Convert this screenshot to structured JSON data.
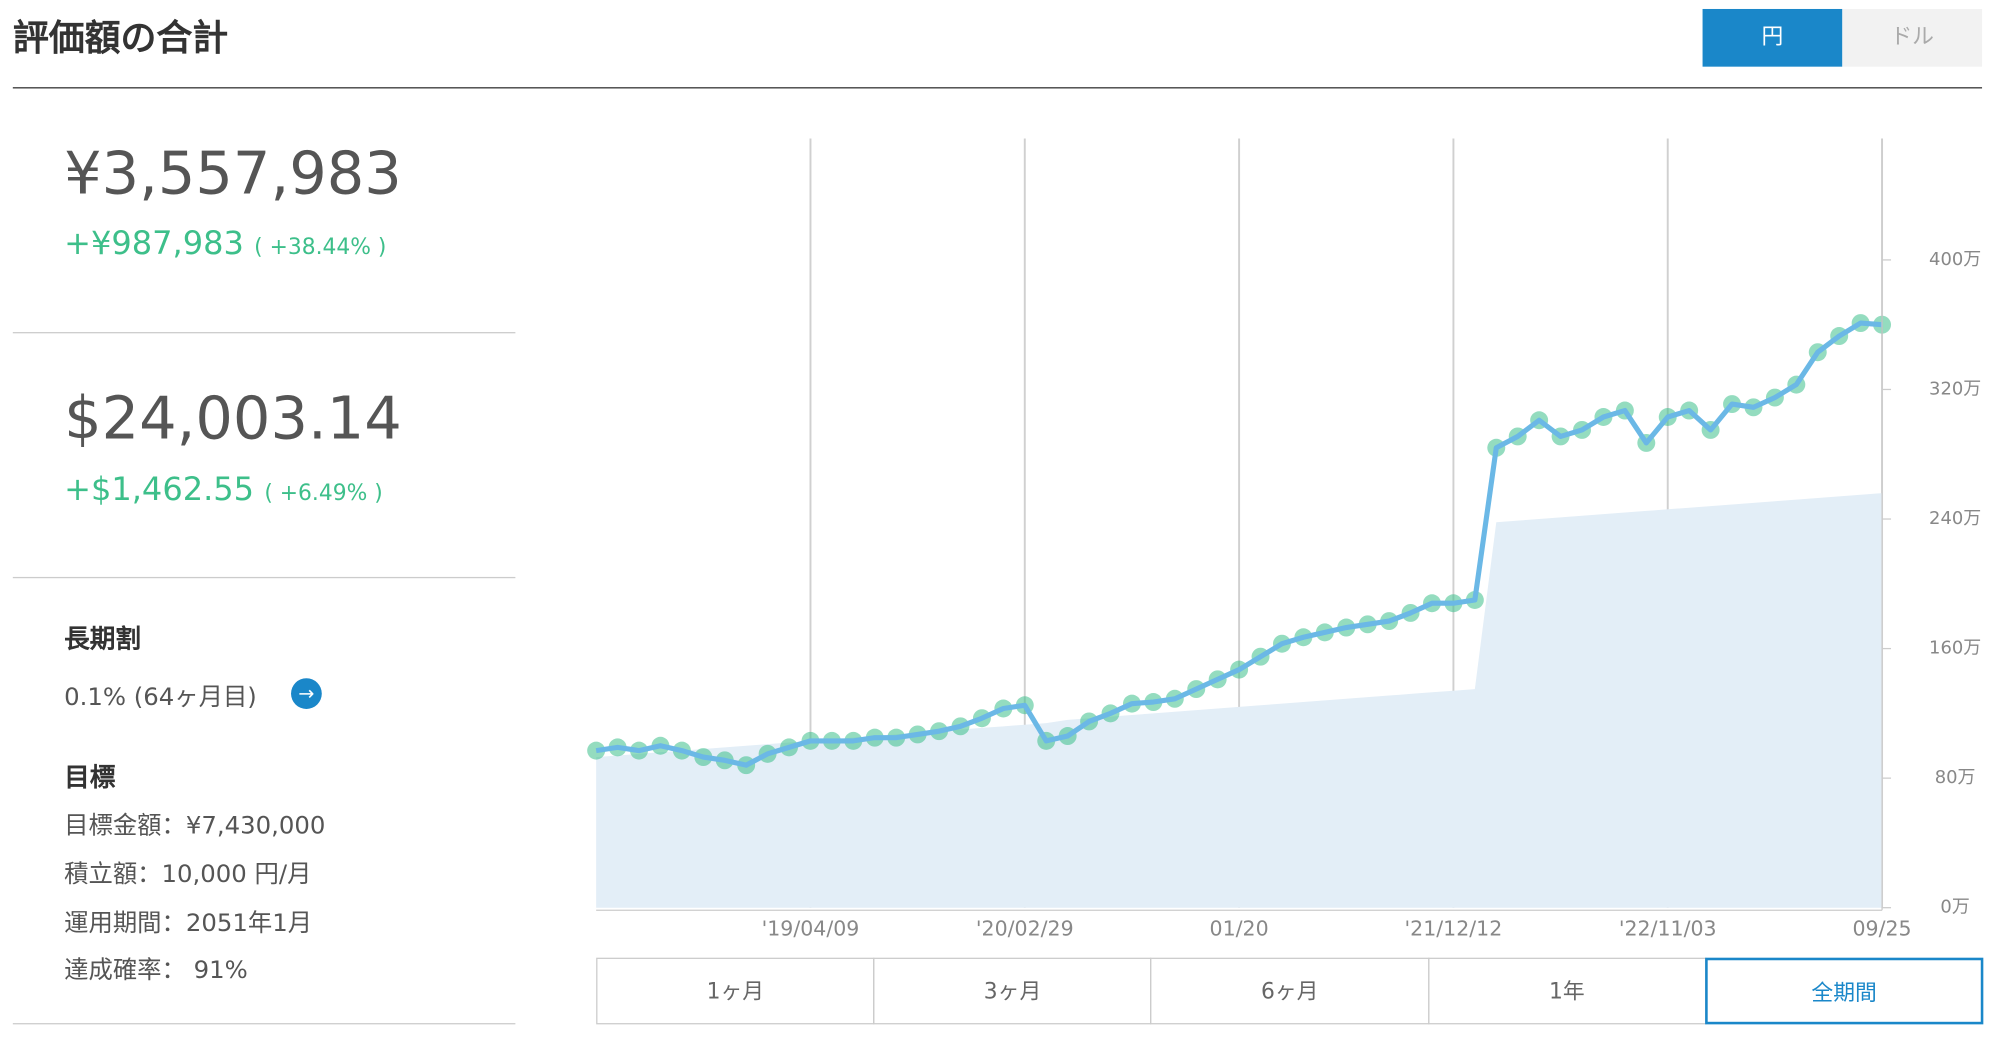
{
  "header": {
    "title": "評価額の合計",
    "toggle": [
      "円",
      "ドル"
    ]
  },
  "summary": {
    "jpy": {
      "total": "¥3,557,983",
      "gain": "+¥987,983",
      "rate": "( +38.44% )"
    },
    "usd": {
      "total": "$24,003.14",
      "gain": "+$1,462.55",
      "rate": "( +6.49% )"
    }
  },
  "discount": {
    "title": "長期割",
    "text": "0.1% (64ヶ月目)"
  },
  "goal": {
    "title": "目標",
    "lines": [
      "目標金額：¥7,430,000",
      "積立額：10,000 円/月",
      "運用期間：2051年1月",
      "達成確率： 91%"
    ]
  },
  "tabs": [
    "1ヶ月",
    "3ヶ月",
    "6ヶ月",
    "1年",
    "全期間"
  ],
  "chart_data": {
    "type": "line",
    "categories": [
      null,
      null,
      null,
      null,
      null,
      null,
      null,
      null,
      null,
      null,
      "'19/04/09",
      null,
      null,
      null,
      null,
      null,
      null,
      null,
      null,
      null,
      "'20/02/29",
      null,
      null,
      null,
      null,
      null,
      null,
      null,
      null,
      null,
      "01/20",
      null,
      null,
      null,
      null,
      null,
      null,
      null,
      null,
      null,
      "'21/12/12",
      null,
      null,
      null,
      null,
      null,
      null,
      null,
      null,
      null,
      "'22/11/03",
      null,
      null,
      null,
      null,
      null,
      null,
      null,
      null,
      null,
      "09/25"
    ],
    "series": [
      {
        "color": "#6bb8e6",
        "marker_color": "#3dbf8a",
        "values": [
          97,
          99,
          97,
          100,
          97,
          93,
          91,
          88,
          95,
          99,
          103,
          103,
          103,
          105,
          105,
          107,
          109,
          112,
          117,
          123,
          125,
          103,
          106,
          115,
          120,
          126,
          127,
          129,
          135,
          141,
          147,
          155,
          163,
          167,
          170,
          173,
          175,
          177,
          182,
          188,
          188,
          190,
          284,
          291,
          301,
          291,
          295,
          303,
          307,
          287,
          303,
          307,
          295,
          311,
          309,
          315,
          323,
          343,
          353,
          361,
          360
        ]
      },
      {
        "color": "#e3eef7",
        "area": true,
        "values": [
          93,
          94,
          95,
          96,
          97,
          98,
          99,
          100,
          101,
          102,
          103,
          104,
          105,
          106,
          107,
          108,
          109,
          110,
          111,
          112,
          113,
          114,
          116,
          117,
          118,
          119,
          120,
          121,
          122,
          123,
          124,
          125,
          126,
          127,
          128,
          129,
          130,
          131,
          132,
          133,
          134,
          135,
          238,
          239,
          240,
          241,
          242,
          243,
          244,
          245,
          246,
          247,
          248,
          249,
          250,
          251,
          252,
          253,
          254,
          255,
          256
        ]
      }
    ],
    "ylim": [
      0,
      475
    ],
    "yticks": [
      {
        "value": 0,
        "label": "0万"
      },
      {
        "value": 80,
        "label": "80万"
      },
      {
        "value": 160,
        "label": "160万"
      },
      {
        "value": 240,
        "label": "240万"
      },
      {
        "value": 320,
        "label": "320万"
      },
      {
        "value": 400,
        "label": "400万"
      }
    ],
    "grid": "x"
  }
}
